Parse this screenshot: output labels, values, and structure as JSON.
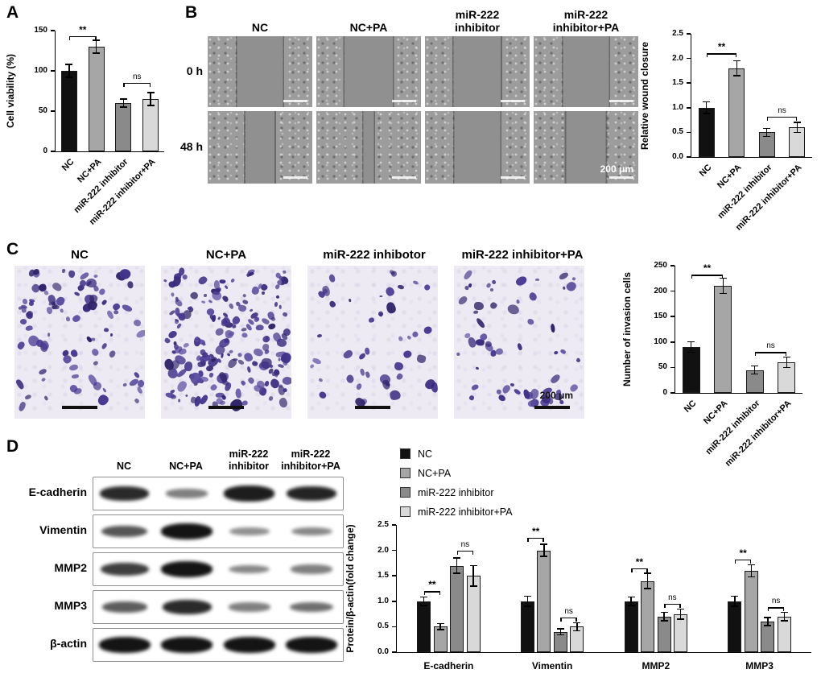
{
  "figure": {
    "panels": {
      "a": {
        "letter": "A"
      },
      "b": {
        "letter": "B",
        "col_headers": [
          "NC",
          "NC+PA",
          "miR-222\ninhibitor",
          "miR-222\ninhibitor+PA"
        ],
        "row_labels": [
          "0 h",
          "48 h"
        ],
        "scale_label": "200 μm",
        "wound_gap_pct": [
          [
            44,
            46,
            45,
            44
          ],
          [
            28,
            10,
            44,
            38
          ]
        ]
      },
      "c": {
        "letter": "C",
        "col_headers": [
          "NC",
          "NC+PA",
          "miR-222 inhibotor",
          "miR-222 inhibitor+PA"
        ],
        "scale_label": "200 μm",
        "cell_counts": [
          90,
          200,
          45,
          60
        ]
      },
      "d": {
        "letter": "D",
        "col_headers": [
          "NC",
          "NC+PA",
          "miR-222\ninhibitor",
          "miR-222\ninhibitor+PA"
        ],
        "blot_rows": [
          {
            "protein": "E-cadherin",
            "bands": [
              0.85,
              0.35,
              0.95,
              0.9
            ]
          },
          {
            "protein": "Vimentin",
            "bands": [
              0.6,
              1.0,
              0.25,
              0.3
            ]
          },
          {
            "protein": "MMP2",
            "bands": [
              0.75,
              1.0,
              0.3,
              0.35
            ]
          },
          {
            "protein": "MMP3",
            "bands": [
              0.55,
              0.85,
              0.35,
              0.45
            ]
          },
          {
            "protein": "β-actin",
            "bands": [
              1,
              1,
              1,
              1
            ]
          }
        ],
        "legend": [
          {
            "label": "NC",
            "color": "#111111"
          },
          {
            "label": "NC+PA",
            "color": "#a6a6a6"
          },
          {
            "label": "miR-222 inhibitor",
            "color": "#8a8a8a"
          },
          {
            "label": "miR-222 inhibitor+PA",
            "color": "#d9d9d9"
          }
        ]
      }
    }
  },
  "chart_data": [
    {
      "id": "a",
      "type": "bar",
      "ylabel": "Cell viability (%)",
      "categories": [
        "NC",
        "NC+PA",
        "miR-222 inhibitor",
        "miR-222 inhibitor+PA"
      ],
      "values": [
        100,
        130,
        60,
        65
      ],
      "errors": [
        8,
        8,
        5,
        8
      ],
      "bar_colors": [
        "#111111",
        "#a6a6a6",
        "#8a8a8a",
        "#d9d9d9"
      ],
      "ylim": [
        0,
        150
      ],
      "yticks": [
        0,
        50,
        100,
        150
      ],
      "ytick_decimals": 0,
      "significance": [
        {
          "between": [
            0,
            1
          ],
          "label": "**",
          "y": 143
        },
        {
          "between": [
            2,
            3
          ],
          "label": "ns",
          "y": 85
        }
      ]
    },
    {
      "id": "b",
      "type": "bar",
      "ylabel": "Relative wound closure",
      "categories": [
        "NC",
        "NC+PA",
        "miR-222 inhibitor",
        "miR-222 inhibitor+PA"
      ],
      "values": [
        1.0,
        1.8,
        0.5,
        0.6
      ],
      "errors": [
        0.12,
        0.15,
        0.08,
        0.1
      ],
      "bar_colors": [
        "#111111",
        "#a6a6a6",
        "#8a8a8a",
        "#d9d9d9"
      ],
      "ylim": [
        0,
        2.5
      ],
      "yticks": [
        0,
        0.5,
        1,
        1.5,
        2,
        2.5
      ],
      "ytick_decimals": 1,
      "significance": [
        {
          "between": [
            0,
            1
          ],
          "label": "**",
          "y": 2.1
        },
        {
          "between": [
            2,
            3
          ],
          "label": "ns",
          "y": 0.82
        }
      ]
    },
    {
      "id": "c",
      "type": "bar",
      "ylabel": "Number of invasion cells",
      "categories": [
        "NC",
        "NC+PA",
        "miR-222 inhibitor",
        "miR-222 inhibitor+PA"
      ],
      "values": [
        90,
        210,
        45,
        60
      ],
      "errors": [
        10,
        15,
        8,
        10
      ],
      "bar_colors": [
        "#111111",
        "#a6a6a6",
        "#8a8a8a",
        "#d9d9d9"
      ],
      "ylim": [
        0,
        250
      ],
      "yticks": [
        0,
        50,
        100,
        150,
        200,
        250
      ],
      "ytick_decimals": 0,
      "significance": [
        {
          "between": [
            0,
            1
          ],
          "label": "**",
          "y": 232
        },
        {
          "between": [
            2,
            3
          ],
          "label": "ns",
          "y": 80
        }
      ]
    },
    {
      "id": "d",
      "type": "grouped_bar",
      "ylabel": "Protein/β-actin(fold change)",
      "categories": [
        "E-cadherin",
        "Vimentin",
        "MMP2",
        "MMP3"
      ],
      "series": [
        {
          "name": "NC",
          "color": "#111111",
          "values": [
            1.0,
            1.0,
            1.0,
            1.0
          ],
          "errors": [
            0.08,
            0.1,
            0.08,
            0.1
          ]
        },
        {
          "name": "NC+PA",
          "color": "#a6a6a6",
          "values": [
            0.5,
            2.0,
            1.4,
            1.6
          ],
          "errors": [
            0.06,
            0.12,
            0.15,
            0.12
          ]
        },
        {
          "name": "miR-222 inhibitor",
          "color": "#8a8a8a",
          "values": [
            1.7,
            0.4,
            0.7,
            0.6
          ],
          "errors": [
            0.15,
            0.06,
            0.08,
            0.08
          ]
        },
        {
          "name": "miR-222 inhibitor+PA",
          "color": "#d9d9d9",
          "values": [
            1.5,
            0.5,
            0.75,
            0.7
          ],
          "errors": [
            0.2,
            0.08,
            0.1,
            0.08
          ]
        }
      ],
      "ylim": [
        0,
        2.5
      ],
      "yticks": [
        0,
        0.5,
        1,
        1.5,
        2,
        2.5
      ],
      "ytick_decimals": 1,
      "significance": [
        {
          "category": 0,
          "between": [
            0,
            1
          ],
          "label": "**",
          "y": 1.2
        },
        {
          "category": 0,
          "between": [
            2,
            3
          ],
          "label": "ns",
          "y": 2.0
        },
        {
          "category": 1,
          "between": [
            0,
            1
          ],
          "label": "**",
          "y": 2.25
        },
        {
          "category": 1,
          "between": [
            2,
            3
          ],
          "label": "ns",
          "y": 0.68
        },
        {
          "category": 2,
          "between": [
            0,
            1
          ],
          "label": "**",
          "y": 1.65
        },
        {
          "category": 2,
          "between": [
            2,
            3
          ],
          "label": "ns",
          "y": 0.95
        },
        {
          "category": 3,
          "between": [
            0,
            1
          ],
          "label": "**",
          "y": 1.82
        },
        {
          "category": 3,
          "between": [
            2,
            3
          ],
          "label": "ns",
          "y": 0.88
        }
      ]
    }
  ]
}
